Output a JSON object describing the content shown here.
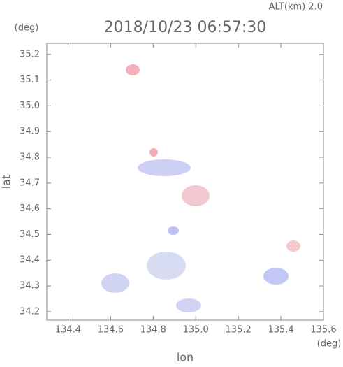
{
  "chart_data": {
    "type": "map",
    "altitude_label": "ALT(km) 2.0",
    "title": "2018/10/23 06:57:30",
    "y_unit": "(deg)",
    "x_unit": "(deg)",
    "ylabel": "lat",
    "xlabel": "lon",
    "xlim": [
      134.3,
      135.6
    ],
    "ylim": [
      34.167,
      35.243
    ],
    "xticks": [
      134.4,
      134.6,
      134.8,
      {
        "value": 135.0,
        "label": "135.0"
      },
      135.2,
      135.4,
      135.6
    ],
    "yticks": [
      34.2,
      34.3,
      34.4,
      34.5,
      34.6,
      34.7,
      34.8,
      34.9,
      {
        "value": 35.0,
        "label": "35.0"
      },
      35.1,
      35.2
    ]
  }
}
